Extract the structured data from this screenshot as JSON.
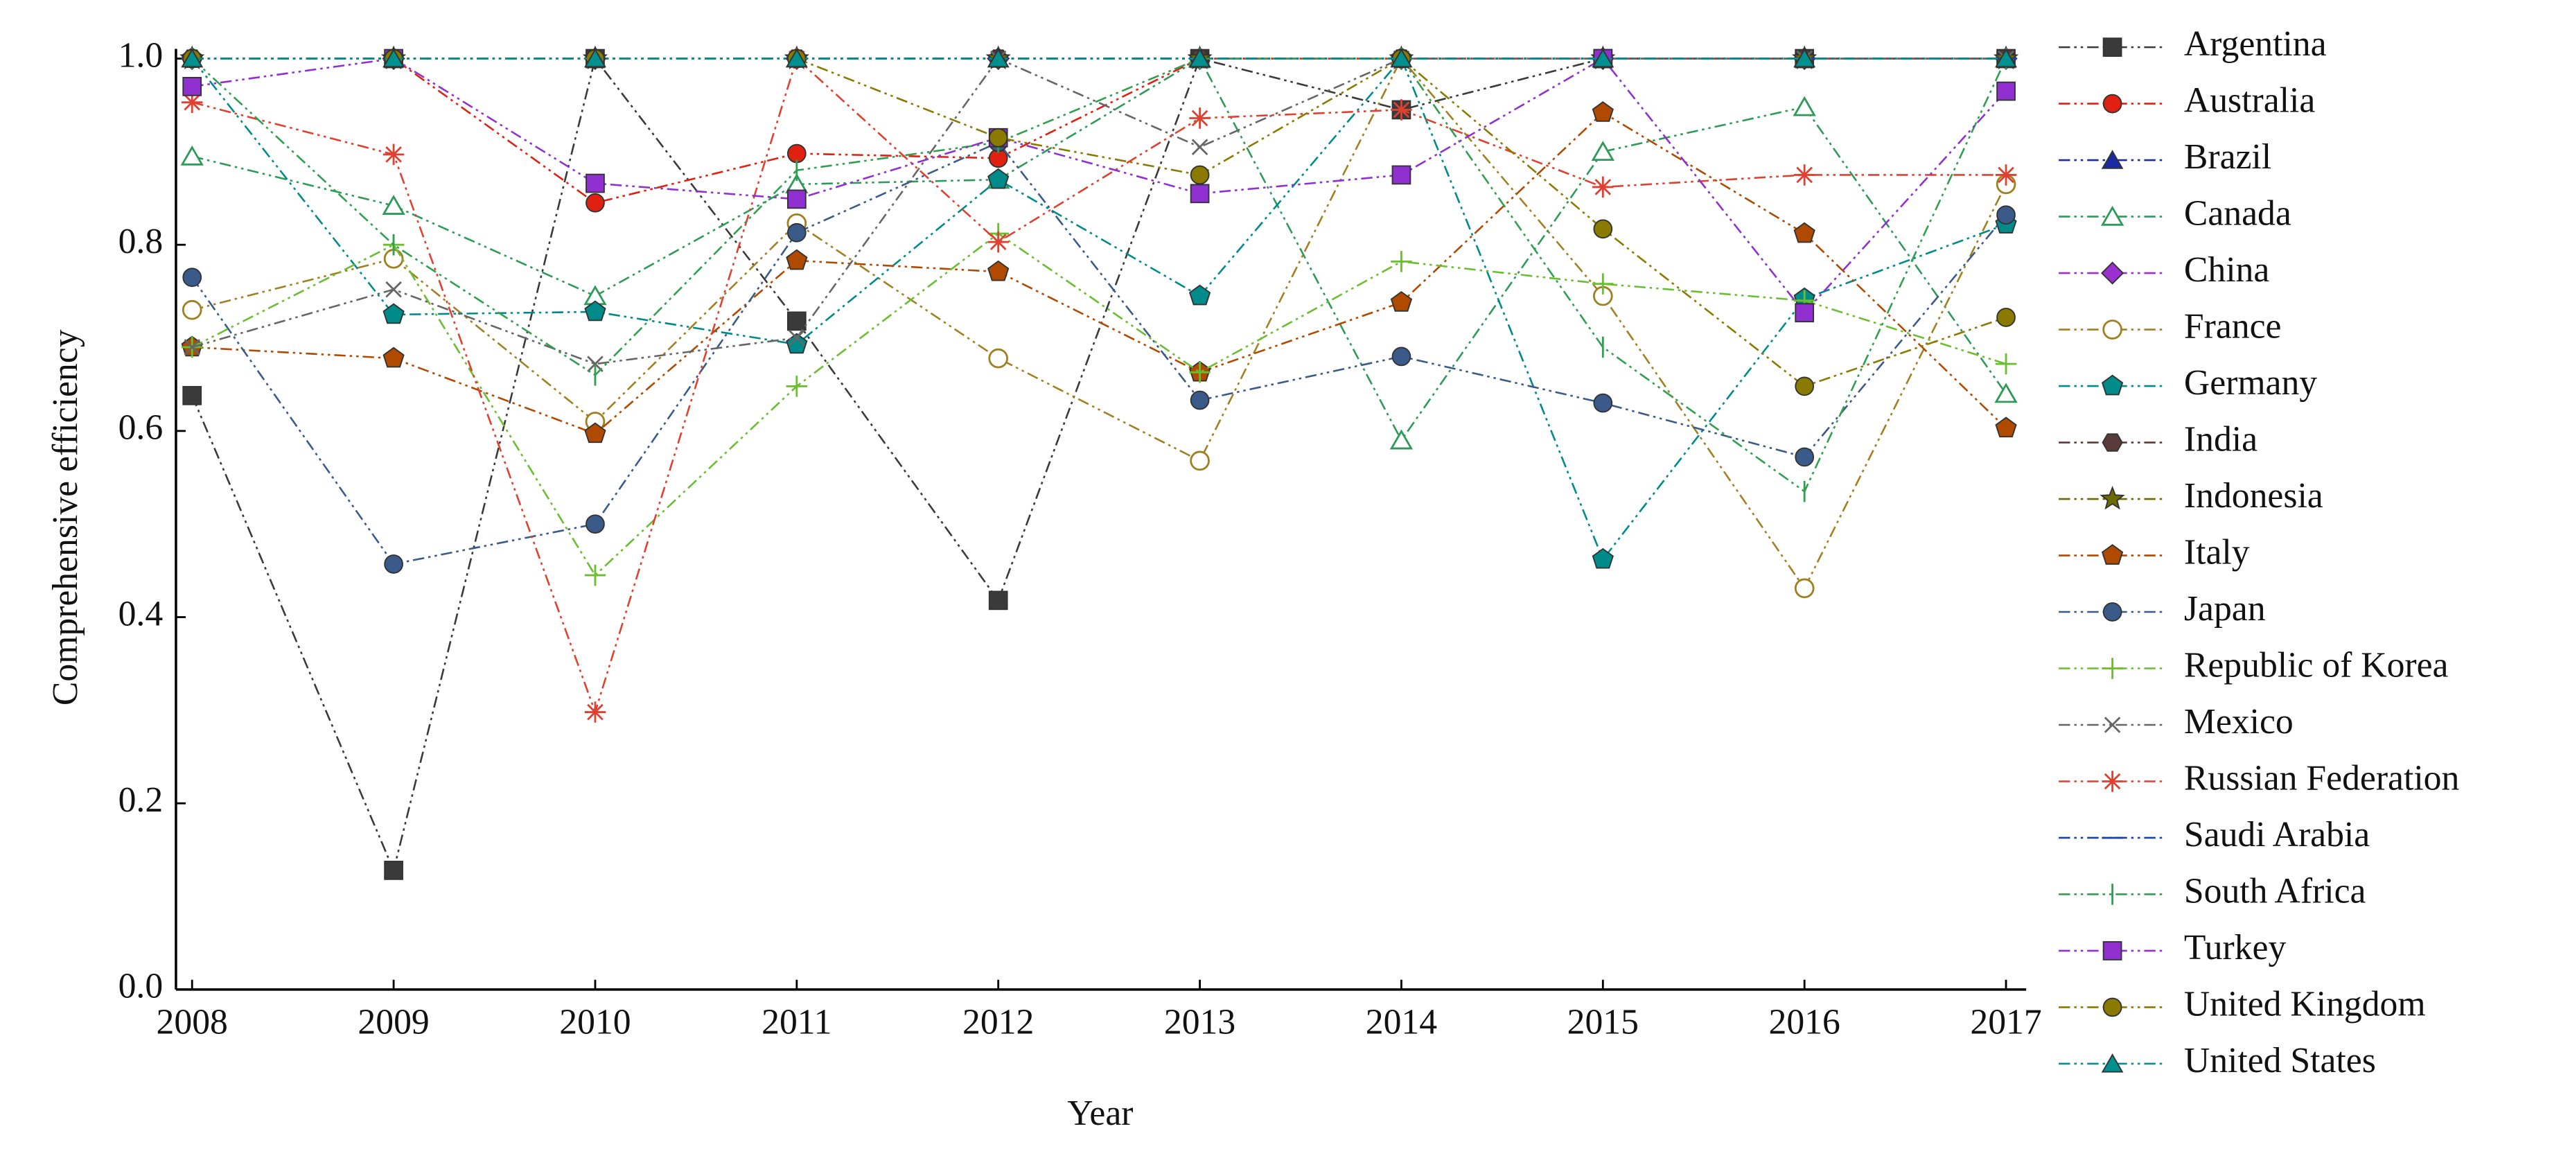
{
  "chart_data": {
    "type": "line",
    "x_label": "Year",
    "y_label": "Comprehensive efficiency",
    "x": [
      2008,
      2009,
      2010,
      2011,
      2012,
      2013,
      2014,
      2015,
      2016,
      2017
    ],
    "xlim": [
      2007.92,
      2017.1
    ],
    "xticks": [
      2008,
      2009,
      2010,
      2011,
      2012,
      2013,
      2014,
      2015,
      2016,
      2017
    ],
    "ylim": [
      0,
      1
    ],
    "yticks": [
      {
        "value": 0,
        "label": "0.0"
      },
      0.2,
      0.4,
      0.6,
      0.8,
      {
        "value": 1,
        "label": "1.0"
      }
    ],
    "legend": "right",
    "series": [
      {
        "name": "Argentina",
        "color": "#3a3a3a",
        "marker": "square",
        "values": [
          0.638,
          0.128,
          1.0,
          0.718,
          0.418,
          1.0,
          0.945,
          1.0,
          1.0,
          1.0
        ]
      },
      {
        "name": "Australia",
        "color": "#e02010",
        "marker": "circle",
        "values": [
          1.0,
          1.0,
          0.845,
          0.898,
          0.893,
          1.0,
          1.0,
          1.0,
          1.0,
          1.0
        ]
      },
      {
        "name": "Brazil",
        "color": "#1a2aa0",
        "marker": "triangle",
        "values": [
          1.0,
          1.0,
          1.0,
          1.0,
          1.0,
          1.0,
          1.0,
          1.0,
          1.0,
          1.0
        ]
      },
      {
        "name": "Canada",
        "color": "#2e9a5a",
        "marker": "open-triangle",
        "values": [
          0.895,
          0.842,
          0.745,
          0.865,
          0.87,
          1.0,
          0.59,
          0.9,
          0.948,
          0.64
        ]
      },
      {
        "name": "China",
        "color": "#9b30d0",
        "marker": "diamond",
        "values": [
          1.0,
          1.0,
          1.0,
          1.0,
          1.0,
          1.0,
          1.0,
          1.0,
          1.0,
          1.0
        ]
      },
      {
        "name": "France",
        "color": "#a08020",
        "marker": "open-circle",
        "values": [
          0.73,
          0.785,
          0.61,
          0.823,
          0.678,
          0.568,
          1.0,
          0.745,
          0.431,
          0.865
        ]
      },
      {
        "name": "Germany",
        "color": "#008b8b",
        "marker": "pentagon",
        "values": [
          1.0,
          0.725,
          0.728,
          0.693,
          0.87,
          0.745,
          1.0,
          0.462,
          0.742,
          0.822
        ]
      },
      {
        "name": "India",
        "color": "#5a3a3a",
        "marker": "hexagon",
        "values": [
          1.0,
          1.0,
          1.0,
          1.0,
          1.0,
          1.0,
          1.0,
          1.0,
          1.0,
          1.0
        ]
      },
      {
        "name": "Indonesia",
        "color": "#6b6b00",
        "marker": "star",
        "values": [
          1.0,
          1.0,
          1.0,
          1.0,
          1.0,
          1.0,
          1.0,
          1.0,
          1.0,
          1.0
        ]
      },
      {
        "name": "Italy",
        "color": "#b04a00",
        "marker": "pentagon",
        "values": [
          0.69,
          0.678,
          0.597,
          0.783,
          0.771,
          0.663,
          0.738,
          0.942,
          0.812,
          0.603
        ]
      },
      {
        "name": "Japan",
        "color": "#3a5a8a",
        "marker": "circle",
        "values": [
          0.765,
          0.457,
          0.5,
          0.813,
          0.91,
          0.633,
          0.68,
          0.63,
          0.572,
          0.832
        ]
      },
      {
        "name": "Republic of Korea",
        "color": "#6abe30",
        "marker": "plus",
        "values": [
          0.69,
          0.8,
          0.445,
          0.648,
          0.812,
          0.663,
          0.782,
          0.758,
          0.74,
          0.672
        ]
      },
      {
        "name": "Mexico",
        "color": "#666666",
        "marker": "cross",
        "values": [
          0.69,
          0.752,
          0.672,
          0.7,
          1.0,
          0.905,
          1.0,
          1.0,
          1.0,
          1.0
        ]
      },
      {
        "name": "Russian Federation",
        "color": "#e04030",
        "marker": "asterisk",
        "values": [
          0.953,
          0.897,
          0.298,
          1.0,
          0.803,
          0.936,
          0.945,
          0.862,
          0.875,
          0.875
        ]
      },
      {
        "name": "Saudi Arabia",
        "color": "#2040a0",
        "marker": "hline",
        "values": [
          1.0,
          1.0,
          1.0,
          1.0,
          1.0,
          1.0,
          1.0,
          1.0,
          1.0,
          1.0
        ]
      },
      {
        "name": "South Africa",
        "color": "#30a050",
        "marker": "vline",
        "values": [
          1.0,
          0.8,
          0.66,
          0.88,
          0.91,
          1.0,
          1.0,
          0.69,
          0.535,
          1.0
        ]
      },
      {
        "name": "Turkey",
        "color": "#9030d0",
        "marker": "square",
        "values": [
          0.97,
          1.0,
          0.866,
          0.849,
          0.915,
          0.855,
          0.875,
          1.0,
          0.727,
          0.965
        ]
      },
      {
        "name": "United Kingdom",
        "color": "#8a7a00",
        "marker": "circle",
        "values": [
          1.0,
          1.0,
          1.0,
          1.0,
          0.915,
          0.875,
          1.0,
          0.817,
          0.648,
          0.722
        ]
      },
      {
        "name": "United States",
        "color": "#009090",
        "marker": "triangle",
        "values": [
          1.0,
          1.0,
          1.0,
          1.0,
          1.0,
          1.0,
          1.0,
          1.0,
          1.0,
          1.0
        ]
      }
    ]
  }
}
